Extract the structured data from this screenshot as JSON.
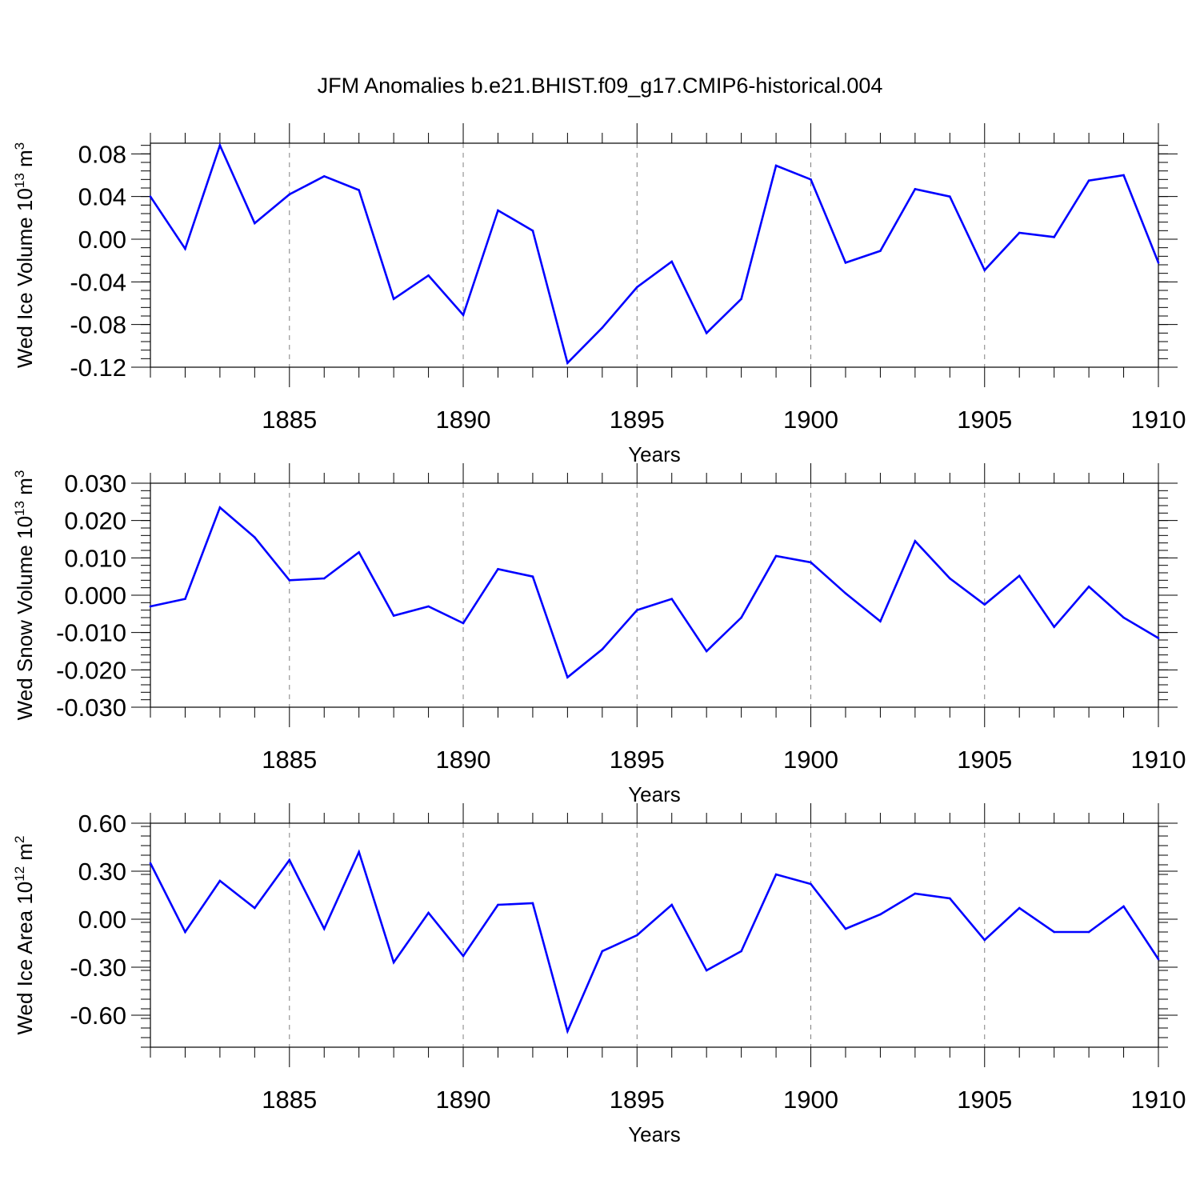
{
  "figure": {
    "title": "JFM Anomalies b.e21.BHIST.f09_g17.CMIP6-historical.004",
    "line_color": "#0000ff",
    "axis_color": "#000000",
    "grid_color": "#808080"
  },
  "chart_data": [
    {
      "type": "line",
      "ylabel": "Wed Ice Volume 10",
      "ylabel_exp": "13",
      "ylabel_unit": " m",
      "ylabel_unit_exp": "3",
      "xlabel": "Years",
      "xlim": [
        1881,
        1910
      ],
      "ylim": [
        -0.12,
        0.09
      ],
      "yticks": [
        0.08,
        0.04,
        0.0,
        -0.04,
        -0.08,
        -0.12
      ],
      "ytick_labels": [
        "0.08",
        "0.04",
        "0.00",
        "-0.04",
        "-0.08",
        "-0.12"
      ],
      "xticks": [
        1885,
        1890,
        1895,
        1900,
        1905,
        1910
      ],
      "xtick_labels": [
        "1885",
        "1890",
        "1895",
        "1900",
        "1905",
        "1910"
      ],
      "grid": "vertical dashed at major x ticks",
      "series": [
        {
          "x": [
            1881,
            1882,
            1883,
            1884,
            1885,
            1886,
            1887,
            1888,
            1889,
            1890,
            1891,
            1892,
            1893,
            1894,
            1895,
            1896,
            1897,
            1898,
            1899,
            1900,
            1901,
            1902,
            1903,
            1904,
            1905,
            1906,
            1907,
            1908,
            1909,
            1910
          ],
          "values": [
            0.04,
            -0.009,
            0.088,
            0.015,
            0.042,
            0.059,
            0.046,
            -0.056,
            -0.034,
            -0.071,
            0.027,
            0.008,
            -0.116,
            -0.083,
            -0.045,
            -0.021,
            -0.088,
            -0.056,
            0.069,
            0.056,
            -0.022,
            -0.011,
            0.047,
            0.04,
            -0.029,
            0.006,
            0.002,
            0.055,
            0.06,
            -0.022
          ]
        }
      ]
    },
    {
      "type": "line",
      "ylabel": "Wed Snow Volume 10",
      "ylabel_exp": "13",
      "ylabel_unit": " m",
      "ylabel_unit_exp": "3",
      "xlabel": "Years",
      "xlim": [
        1881,
        1910
      ],
      "ylim": [
        -0.03,
        0.03
      ],
      "yticks": [
        0.03,
        0.02,
        0.01,
        0.0,
        -0.01,
        -0.02,
        -0.03
      ],
      "ytick_labels": [
        "0.030",
        "0.020",
        "0.010",
        "0.000",
        "-0.010",
        "-0.020",
        "-0.030"
      ],
      "xticks": [
        1885,
        1890,
        1895,
        1900,
        1905,
        1910
      ],
      "xtick_labels": [
        "1885",
        "1890",
        "1895",
        "1900",
        "1905",
        "1910"
      ],
      "grid": "vertical dashed at major x ticks",
      "series": [
        {
          "x": [
            1881,
            1882,
            1883,
            1884,
            1885,
            1886,
            1887,
            1888,
            1889,
            1890,
            1891,
            1892,
            1893,
            1894,
            1895,
            1896,
            1897,
            1898,
            1899,
            1900,
            1901,
            1902,
            1903,
            1904,
            1905,
            1906,
            1907,
            1908,
            1909,
            1910
          ],
          "values": [
            -0.003,
            -0.001,
            0.0235,
            0.0155,
            0.004,
            0.0045,
            0.0115,
            -0.0055,
            -0.003,
            -0.0075,
            0.007,
            0.005,
            -0.022,
            -0.0145,
            -0.004,
            -0.001,
            -0.015,
            -0.006,
            0.0105,
            0.0088,
            0.0005,
            -0.007,
            0.0145,
            0.0045,
            -0.0025,
            0.0052,
            -0.0085,
            0.0023,
            -0.006,
            -0.0115
          ]
        }
      ]
    },
    {
      "type": "line",
      "ylabel": "Wed Ice Area 10",
      "ylabel_exp": "12",
      "ylabel_unit": " m",
      "ylabel_unit_exp": "2",
      "xlabel": "Years",
      "xlim": [
        1881,
        1910
      ],
      "ylim": [
        -0.8,
        0.6
      ],
      "yticks": [
        0.6,
        0.3,
        0.0,
        -0.3,
        -0.6
      ],
      "ytick_labels": [
        "0.60",
        "0.30",
        "0.00",
        "-0.30",
        "-0.60"
      ],
      "xticks": [
        1885,
        1890,
        1895,
        1900,
        1905,
        1910
      ],
      "xtick_labels": [
        "1885",
        "1890",
        "1895",
        "1900",
        "1905",
        "1910"
      ],
      "grid": "vertical dashed at major x ticks",
      "series": [
        {
          "x": [
            1881,
            1882,
            1883,
            1884,
            1885,
            1886,
            1887,
            1888,
            1889,
            1890,
            1891,
            1892,
            1893,
            1894,
            1895,
            1896,
            1897,
            1898,
            1899,
            1900,
            1901,
            1902,
            1903,
            1904,
            1905,
            1906,
            1907,
            1908,
            1909,
            1910
          ],
          "values": [
            0.35,
            -0.08,
            0.24,
            0.07,
            0.37,
            -0.06,
            0.42,
            -0.27,
            0.04,
            -0.23,
            0.09,
            0.1,
            -0.7,
            -0.2,
            -0.1,
            0.09,
            -0.32,
            -0.2,
            0.28,
            0.22,
            -0.06,
            0.03,
            0.16,
            0.13,
            -0.13,
            0.07,
            -0.08,
            -0.08,
            0.08,
            -0.25
          ]
        }
      ]
    }
  ]
}
